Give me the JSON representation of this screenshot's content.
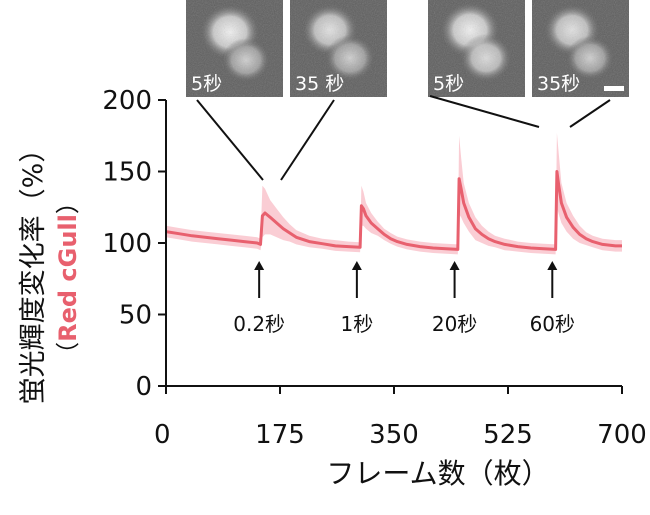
{
  "chart_data": {
    "type": "line",
    "xlabel": "フレーム数（枚）",
    "ylabel": "蛍光輝度変化率（%）",
    "ylabel_sub": "（Red cGull）",
    "ylabel_sub_text": "Red cGull",
    "xlim": [
      0,
      700
    ],
    "ylim": [
      0,
      200
    ],
    "x_ticks": [
      0,
      175,
      350,
      525,
      700
    ],
    "y_ticks": [
      0,
      50,
      100,
      150,
      200
    ],
    "grid": false,
    "series": [
      {
        "color": "#E8606E",
        "band_color": "#F9C8CF",
        "x": [
          0,
          20,
          40,
          60,
          80,
          100,
          120,
          140,
          145,
          148,
          152,
          160,
          170,
          180,
          190,
          200,
          220,
          240,
          260,
          280,
          298,
          300,
          303,
          307,
          315,
          325,
          335,
          345,
          355,
          370,
          390,
          410,
          430,
          448,
          450,
          453,
          457,
          465,
          475,
          485,
          495,
          505,
          520,
          540,
          560,
          580,
          598,
          600,
          603,
          607,
          615,
          625,
          635,
          645,
          655,
          670,
          690,
          700
        ],
        "values": [
          108,
          106.5,
          105,
          104,
          103,
          102,
          101,
          100,
          99,
          119,
          121,
          118,
          114,
          110,
          107,
          104,
          101,
          99.5,
          98,
          97.5,
          97,
          126,
          124,
          119,
          114,
          110,
          106,
          103,
          101,
          99,
          97.5,
          96.5,
          96,
          95.5,
          145,
          138,
          128,
          118,
          110,
          106,
          103,
          101,
          99,
          97.5,
          96.5,
          96,
          95.5,
          150,
          140,
          128,
          118,
          111,
          106,
          103,
          101,
          99,
          98,
          98
        ],
        "band_upper": [
          112,
          110.5,
          109,
          108,
          107,
          106,
          105,
          104,
          103,
          140,
          138,
          130,
          124,
          118,
          113,
          109,
          105,
          103,
          102,
          101,
          100.5,
          140,
          136,
          128,
          121,
          115,
          110,
          107,
          104.5,
          102.5,
          101,
          100,
          99.5,
          99,
          175,
          160,
          142,
          128,
          118,
          112,
          108,
          105,
          103,
          101,
          100,
          99.5,
          99,
          177,
          162,
          142,
          128,
          119,
          112,
          107.5,
          105,
          103,
          102,
          102
        ],
        "band_lower": [
          104,
          102.5,
          101,
          100,
          99,
          98,
          97,
          96,
          95,
          104,
          106,
          106,
          104,
          102,
          101,
          99,
          97,
          96,
          94.5,
          94,
          93.5,
          112,
          112,
          110,
          107,
          105,
          102,
          99.5,
          97.5,
          95.5,
          94,
          93,
          92.5,
          92,
          120,
          118,
          114,
          108,
          102,
          100,
          98,
          97,
          95,
          94,
          93,
          92.5,
          92,
          125,
          120,
          114,
          108,
          103,
          100,
          98.5,
          97,
          95,
          94,
          94
        ]
      }
    ],
    "stimuli": [
      {
        "x": 143,
        "label": "0.2秒"
      },
      {
        "x": 293,
        "label": "1秒"
      },
      {
        "x": 443,
        "label": "20秒"
      },
      {
        "x": 593,
        "label": "60秒"
      }
    ],
    "insets": [
      {
        "label": "5秒"
      },
      {
        "label": "35 秒"
      },
      {
        "label": "5秒"
      },
      {
        "label": "35秒"
      }
    ]
  }
}
